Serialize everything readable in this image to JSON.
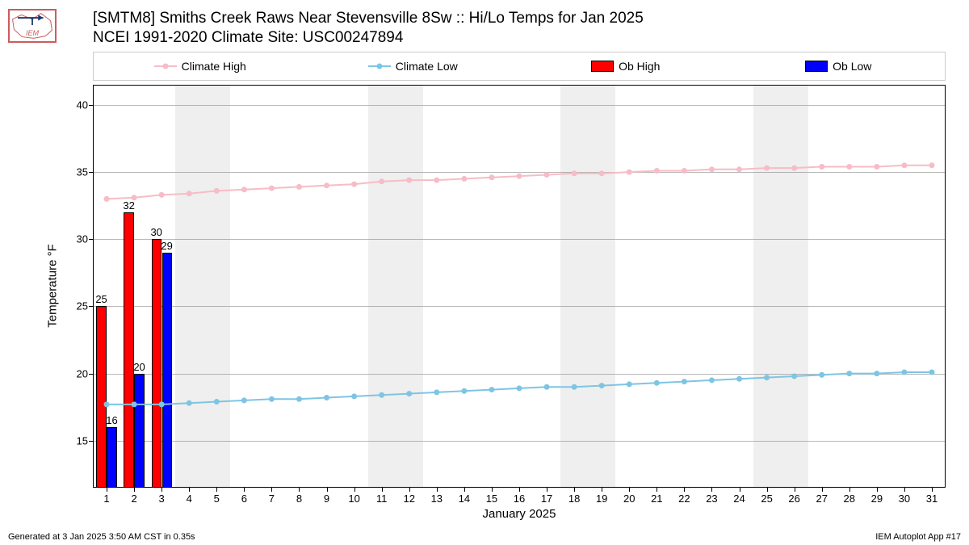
{
  "logo": {
    "text": "IEM",
    "color": "#cd5c5c",
    "stroke": "#1e386b"
  },
  "title": {
    "line1": "[SMTM8] Smiths Creek Raws Near Stevensville 8Sw :: Hi/Lo Temps for Jan 2025",
    "line2": "NCEI 1991-2020 Climate Site: USC00247894"
  },
  "footer": {
    "left": "Generated at 3 Jan 2025 3:50 AM CST in 0.35s",
    "right": "IEM Autoplot App #17"
  },
  "legend": {
    "items": [
      {
        "label": "Climate High",
        "kind": "line",
        "color": "#f7bcc6"
      },
      {
        "label": "Climate Low",
        "kind": "line",
        "color": "#7ec5e3"
      },
      {
        "label": "Ob High",
        "kind": "bar",
        "color": "#ff0000"
      },
      {
        "label": "Ob Low",
        "kind": "bar",
        "color": "#0000ff"
      }
    ]
  },
  "chart": {
    "type": "mixed-bar-line",
    "background_color": "#ffffff",
    "grid_color": "#808080",
    "weekend_band_color": "#efefef",
    "x": {
      "title": "January 2025",
      "min": 0.5,
      "max": 31.5,
      "ticks": [
        1,
        2,
        3,
        4,
        5,
        6,
        7,
        8,
        9,
        10,
        11,
        12,
        13,
        14,
        15,
        16,
        17,
        18,
        19,
        20,
        21,
        22,
        23,
        24,
        25,
        26,
        27,
        28,
        29,
        30,
        31
      ]
    },
    "y": {
      "title": "Temperature °F",
      "min": 11.5,
      "max": 41.5,
      "ticks": [
        15,
        20,
        25,
        30,
        35,
        40
      ]
    },
    "weekend_bands": [
      [
        3.5,
        5.5
      ],
      [
        10.5,
        12.5
      ],
      [
        17.5,
        19.5
      ],
      [
        24.5,
        26.5
      ]
    ],
    "climate_high": {
      "color": "#f7bcc6",
      "marker_color": "#f7bcc6",
      "line_width": 2,
      "marker_size": 7,
      "x": [
        1,
        2,
        3,
        4,
        5,
        6,
        7,
        8,
        9,
        10,
        11,
        12,
        13,
        14,
        15,
        16,
        17,
        18,
        19,
        20,
        21,
        22,
        23,
        24,
        25,
        26,
        27,
        28,
        29,
        30,
        31
      ],
      "y": [
        33.0,
        33.1,
        33.3,
        33.4,
        33.6,
        33.7,
        33.8,
        33.9,
        34.0,
        34.1,
        34.3,
        34.4,
        34.4,
        34.5,
        34.6,
        34.7,
        34.8,
        34.9,
        34.9,
        35.0,
        35.1,
        35.1,
        35.2,
        35.2,
        35.3,
        35.3,
        35.4,
        35.4,
        35.4,
        35.5,
        35.5
      ]
    },
    "climate_low": {
      "color": "#7ec5e3",
      "marker_color": "#7ec5e3",
      "line_width": 2,
      "marker_size": 7,
      "x": [
        1,
        2,
        3,
        4,
        5,
        6,
        7,
        8,
        9,
        10,
        11,
        12,
        13,
        14,
        15,
        16,
        17,
        18,
        19,
        20,
        21,
        22,
        23,
        24,
        25,
        26,
        27,
        28,
        29,
        30,
        31
      ],
      "y": [
        17.7,
        17.7,
        17.7,
        17.8,
        17.9,
        18.0,
        18.1,
        18.1,
        18.2,
        18.3,
        18.4,
        18.5,
        18.6,
        18.7,
        18.8,
        18.9,
        19.0,
        19.0,
        19.1,
        19.2,
        19.3,
        19.4,
        19.5,
        19.6,
        19.7,
        19.8,
        19.9,
        20.0,
        20.0,
        20.1,
        20.1
      ]
    },
    "ob_high": {
      "color": "#ff0000",
      "bar_width": 0.36,
      "days": [
        1,
        2,
        3
      ],
      "values": [
        25,
        32,
        30
      ]
    },
    "ob_low": {
      "color": "#0000ff",
      "bar_width": 0.36,
      "days": [
        1,
        2,
        3
      ],
      "values": [
        16,
        20,
        29
      ]
    }
  }
}
